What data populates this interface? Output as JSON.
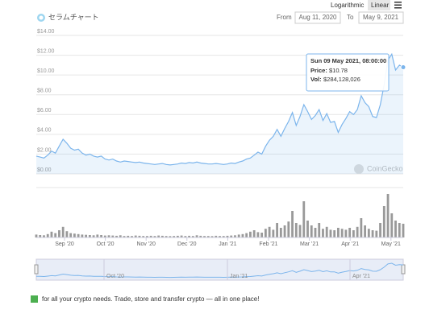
{
  "controls": {
    "log": "Logarithmic",
    "linear": "Linear"
  },
  "chart_data": {
    "type": "line",
    "title": "セラムチャート",
    "from_label": "From",
    "from": "Aug 11, 2020",
    "to_label": "To",
    "to": "May 9, 2021",
    "ylim": [
      0,
      14
    ],
    "yticks": [
      {
        "value": 0,
        "label": "$0.00"
      },
      {
        "value": 2,
        "label": "$2.00"
      },
      {
        "value": 4,
        "label": "$4.00"
      },
      {
        "value": 6,
        "label": "$6.00"
      },
      {
        "value": 8,
        "label": "$8.00"
      },
      {
        "value": 10,
        "label": "$10.00"
      },
      {
        "value": 12,
        "label": "$12.00"
      },
      {
        "value": 14,
        "label": "$14.00"
      }
    ],
    "xticks": [
      "Sep '20",
      "Oct '20",
      "Nov '20",
      "Dec '20",
      "Jan '21",
      "Feb '21",
      "Mar '21",
      "Apr '21",
      "May '21"
    ],
    "navigator_ticks": [
      "Oct '20",
      "Jan '21",
      "Apr '21"
    ],
    "grid": true,
    "color": "#7cb5ec",
    "watermark": "CoinGecko",
    "series": [
      {
        "name": "Price",
        "color": "#7cb5ec",
        "values": [
          1.8,
          1.7,
          1.6,
          1.9,
          2.3,
          2.1,
          2.8,
          3.5,
          3.1,
          2.6,
          2.4,
          2.5,
          2.1,
          1.9,
          2.0,
          1.8,
          1.7,
          1.8,
          1.5,
          1.4,
          1.5,
          1.3,
          1.2,
          1.3,
          1.25,
          1.2,
          1.15,
          1.2,
          1.1,
          1.05,
          1.0,
          0.95,
          1.0,
          1.05,
          0.95,
          0.9,
          0.95,
          1.0,
          1.1,
          1.05,
          1.15,
          1.1,
          1.2,
          1.1,
          1.05,
          1.0,
          1.0,
          1.05,
          1.0,
          0.95,
          1.0,
          1.1,
          1.05,
          1.2,
          1.3,
          1.5,
          1.6,
          1.9,
          2.2,
          2.0,
          2.8,
          3.4,
          3.8,
          4.5,
          3.8,
          4.6,
          5.3,
          6.2,
          4.9,
          5.8,
          7.0,
          6.3,
          5.5,
          5.9,
          6.5,
          5.4,
          6.1,
          5.2,
          5.3,
          4.2,
          5.0,
          5.6,
          6.3,
          6.0,
          6.5,
          7.9,
          7.2,
          6.8,
          5.8,
          5.7,
          7.0,
          9.0,
          11.5,
          12.1,
          10.5,
          11.0,
          10.78
        ]
      }
    ],
    "volume": {
      "color": "#999999",
      "ylim": [
        0,
        1000000000
      ],
      "values": [
        60000000,
        50000000,
        45000000,
        70000000,
        120000000,
        90000000,
        150000000,
        220000000,
        130000000,
        90000000,
        80000000,
        70000000,
        60000000,
        55000000,
        50000000,
        45000000,
        60000000,
        50000000,
        40000000,
        45000000,
        40000000,
        35000000,
        45000000,
        30000000,
        35000000,
        30000000,
        40000000,
        35000000,
        30000000,
        30000000,
        35000000,
        30000000,
        40000000,
        35000000,
        30000000,
        28000000,
        30000000,
        35000000,
        40000000,
        30000000,
        35000000,
        30000000,
        45000000,
        35000000,
        30000000,
        30000000,
        28000000,
        35000000,
        30000000,
        30000000,
        35000000,
        40000000,
        45000000,
        60000000,
        70000000,
        90000000,
        120000000,
        150000000,
        110000000,
        100000000,
        180000000,
        220000000,
        160000000,
        300000000,
        200000000,
        250000000,
        330000000,
        550000000,
        300000000,
        260000000,
        750000000,
        350000000,
        250000000,
        200000000,
        300000000,
        180000000,
        220000000,
        160000000,
        150000000,
        200000000,
        180000000,
        160000000,
        200000000,
        150000000,
        220000000,
        400000000,
        250000000,
        180000000,
        150000000,
        140000000,
        300000000,
        650000000,
        900000000,
        500000000,
        350000000,
        300000000,
        284128026
      ]
    },
    "tooltip": {
      "date": "Sun 09 May 2021, 08:00:00",
      "price_label": "Price:",
      "price": "$10.78",
      "vol_label": "Vol:",
      "vol": "$284,128,026"
    }
  },
  "footer": "for all your crypto needs. Trade, store and transfer crypto — all in one place!"
}
